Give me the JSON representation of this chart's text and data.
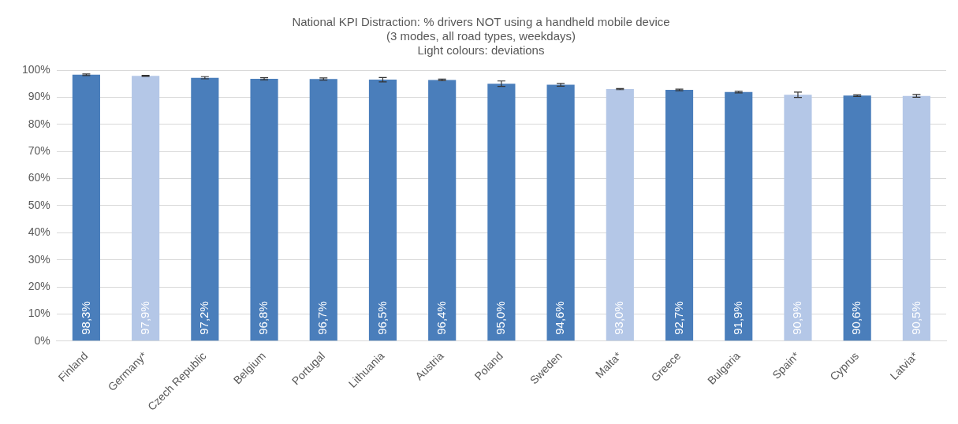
{
  "chart_data": {
    "type": "bar",
    "title": "National KPI Distraction: % drivers NOT using a handheld mobile device\n(3 modes, all road types, weekdays)\nLight colours: deviations",
    "categories": [
      "Finland",
      "Germany*",
      "Czech Republic",
      "Belgium",
      "Portugal",
      "Lithuania",
      "Austria",
      "Poland",
      "Sweden",
      "Malta*",
      "Greece",
      "Bulgaria",
      "Spain*",
      "Cyprus",
      "Latvia*"
    ],
    "values": [
      98.3,
      97.9,
      97.2,
      96.8,
      96.7,
      96.5,
      96.4,
      95.0,
      94.6,
      93.0,
      92.7,
      91.9,
      90.9,
      90.6,
      90.5
    ],
    "errors": [
      0.3,
      0.2,
      0.4,
      0.4,
      0.4,
      0.8,
      0.3,
      1.0,
      0.5,
      0.2,
      0.3,
      0.3,
      1.0,
      0.3,
      0.5
    ],
    "colors": [
      "#4a7ebb",
      "#b4c7e7",
      "#4a7ebb",
      "#4a7ebb",
      "#4a7ebb",
      "#4a7ebb",
      "#4a7ebb",
      "#4a7ebb",
      "#4a7ebb",
      "#b4c7e7",
      "#4a7ebb",
      "#4a7ebb",
      "#b4c7e7",
      "#4a7ebb",
      "#b4c7e7"
    ],
    "value_labels": [
      "98,3%",
      "97,9%",
      "97,2%",
      "96,8%",
      "96,7%",
      "96,5%",
      "96,4%",
      "95,0%",
      "94,6%",
      "93,0%",
      "92,7%",
      "91,9%",
      "90,9%",
      "90,6%",
      "90,5%"
    ],
    "ylim": [
      0,
      100
    ],
    "yticks": [
      {
        "value": 0,
        "label": "0%"
      },
      {
        "value": 10,
        "label": "10%"
      },
      {
        "value": 20,
        "label": "20%"
      },
      {
        "value": 30,
        "label": "30%"
      },
      {
        "value": 40,
        "label": "40%"
      },
      {
        "value": 50,
        "label": "50%"
      },
      {
        "value": 60,
        "label": "60%"
      },
      {
        "value": 70,
        "label": "70%"
      },
      {
        "value": 80,
        "label": "80%"
      },
      {
        "value": 90,
        "label": "90%"
      },
      {
        "value": 100,
        "label": "100%"
      }
    ],
    "grid": "y"
  }
}
